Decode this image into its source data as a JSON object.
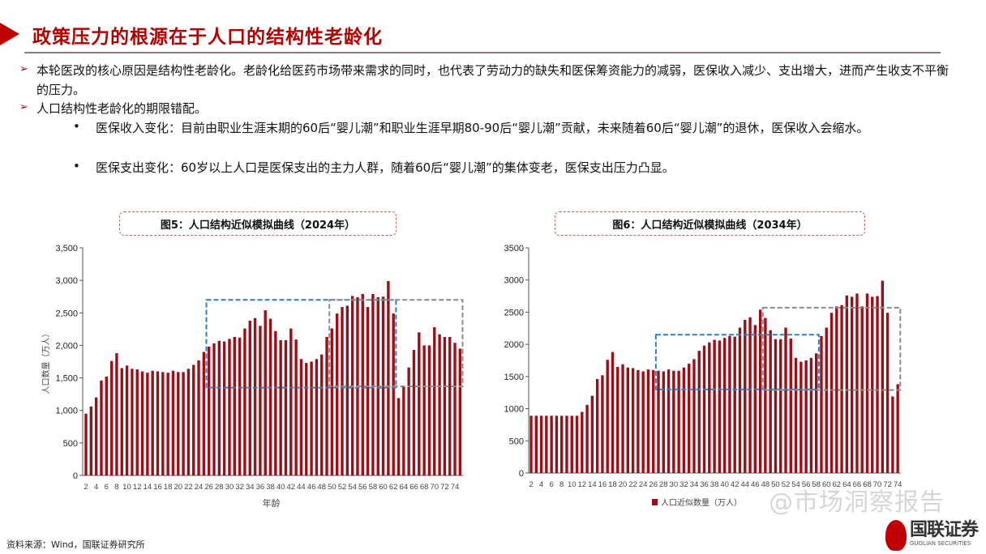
{
  "header": {
    "title": "政策压力的根源在于人口的结构性老龄化"
  },
  "bullets": [
    {
      "text": "本轮医改的核心原因是结构性老龄化。老龄化给医药市场带来需求的同时，也代表了劳动力的缺失和医保筹资能力的减弱，医保收入减少、支出增大，进而产生收支不平衡的压力。"
    },
    {
      "text": "人口结构性老龄化的期限错配。"
    }
  ],
  "sub_bullets": [
    {
      "text": "医保收入变化：目前由职业生涯末期的60后“婴儿潮”和职业生涯早期80-90后“婴儿潮”贡献，未来随着60后“婴儿潮”的退休，医保收入会缩水。"
    },
    {
      "text": "医保支出变化：60岁以上人口是医保支出的主力人群，随着60后“婴儿潮”的集体变老，医保支出压力凸显。"
    }
  ],
  "colors": {
    "accent": "#c00000",
    "bar": "#9b1018",
    "blue_box": "#2f7fbf",
    "grey_box": "#8c8c8c"
  },
  "chart_data": [
    {
      "type": "bar",
      "title": "图5：人口结构近似模拟曲线（2024年）",
      "xlabel": "年龄",
      "ylabel": "人口数量（万人）",
      "ylim": [
        0,
        3500
      ],
      "yticks": [
        "0",
        "500",
        "1,000",
        "1,500",
        "2,000",
        "2,500",
        "3,000",
        "3,500"
      ],
      "xticks": [
        "2",
        "4",
        "6",
        "8",
        "10",
        "12",
        "14",
        "16",
        "18",
        "20",
        "22",
        "24",
        "26",
        "28",
        "30",
        "32",
        "34",
        "36",
        "38",
        "40",
        "42",
        "44",
        "46",
        "48",
        "50",
        "52",
        "54",
        "56",
        "58",
        "60",
        "62",
        "64",
        "66",
        "68",
        "70",
        "72",
        "74"
      ],
      "x_start": 2,
      "values": [
        950,
        1060,
        1200,
        1460,
        1520,
        1760,
        1880,
        1650,
        1690,
        1640,
        1630,
        1600,
        1580,
        1610,
        1600,
        1590,
        1580,
        1610,
        1590,
        1590,
        1640,
        1700,
        1770,
        1900,
        1980,
        2030,
        2070,
        2060,
        2100,
        2130,
        2120,
        2260,
        2380,
        2420,
        2300,
        2540,
        2410,
        2220,
        2080,
        2080,
        2260,
        2090,
        1790,
        1730,
        1750,
        1790,
        1860,
        2130,
        2260,
        2490,
        2590,
        2610,
        2760,
        2740,
        2790,
        2590,
        2790,
        2740,
        2750,
        2990,
        2490,
        1190,
        1380,
        1660,
        1930,
        2200,
        2000,
        2000,
        2280,
        2170,
        2130,
        2130,
        2040,
        1950
      ],
      "highlight_boxes": [
        {
          "color": "blue",
          "age_range": [
            25.5,
            62.5
          ],
          "value_range": [
            1350,
            2700
          ]
        },
        {
          "color": "grey",
          "age_range": [
            49.5,
            75.5
          ],
          "value_range": [
            1370,
            2700
          ]
        }
      ],
      "grid": false
    },
    {
      "type": "bar",
      "title": "图6：人口结构近似模拟曲线（2034年）",
      "legend": "人口近似数量（万人）",
      "legend_position": "bottom",
      "ylim": [
        0,
        3500
      ],
      "yticks": [
        "0",
        "500",
        "1000",
        "1500",
        "2000",
        "2500",
        "3000",
        "3500"
      ],
      "xticks": [
        "2",
        "4",
        "6",
        "8",
        "10",
        "12",
        "14",
        "16",
        "18",
        "20",
        "22",
        "24",
        "26",
        "28",
        "30",
        "32",
        "34",
        "36",
        "38",
        "40",
        "42",
        "44",
        "46",
        "48",
        "50",
        "52",
        "54",
        "56",
        "58",
        "60",
        "62",
        "64",
        "66",
        "68",
        "70",
        "72",
        "74"
      ],
      "x_start": 2,
      "values": [
        890,
        890,
        890,
        890,
        890,
        890,
        890,
        890,
        890,
        890,
        950,
        1060,
        1200,
        1460,
        1520,
        1760,
        1880,
        1650,
        1690,
        1640,
        1630,
        1600,
        1580,
        1610,
        1600,
        1590,
        1580,
        1610,
        1590,
        1590,
        1640,
        1700,
        1770,
        1900,
        1980,
        2030,
        2070,
        2060,
        2100,
        2130,
        2120,
        2260,
        2380,
        2420,
        2300,
        2540,
        2410,
        2220,
        2080,
        2080,
        2260,
        2090,
        1790,
        1730,
        1750,
        1790,
        1860,
        2130,
        2260,
        2490,
        2590,
        2610,
        2760,
        2740,
        2790,
        2590,
        2790,
        2740,
        2750,
        2990,
        2490,
        1190,
        1380
      ],
      "highlight_boxes": [
        {
          "color": "blue",
          "age_range": [
            26.5,
            58.5
          ],
          "value_range": [
            1300,
            2150
          ]
        },
        {
          "color": "grey",
          "age_range": [
            47.5,
            74.5
          ],
          "value_range": [
            1290,
            2570
          ]
        }
      ],
      "grid": false
    }
  ],
  "footer": {
    "source": "资料来源：Wind，国联证券研究所",
    "watermark": "@市场洞察报告",
    "logo_cn": "国联证券",
    "logo_en": "GUOLIAN SECURITIES"
  }
}
